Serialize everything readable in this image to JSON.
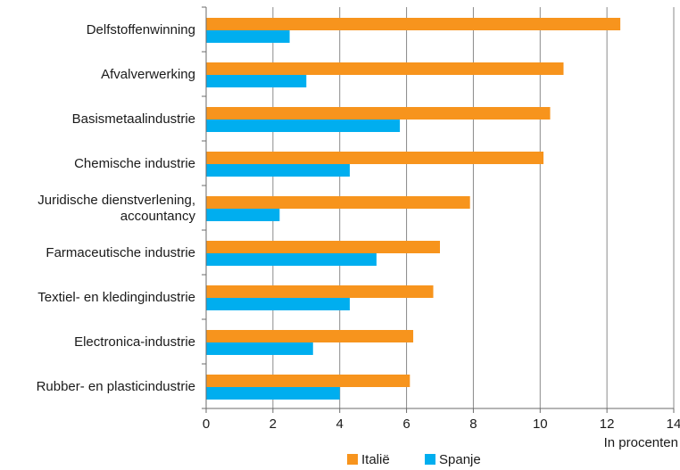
{
  "chart_data": {
    "type": "bar",
    "orientation": "horizontal",
    "categories": [
      [
        "Delfstoffenwinning"
      ],
      [
        "Afvalverwerking"
      ],
      [
        "Basismetaalindustrie"
      ],
      [
        "Chemische industrie"
      ],
      [
        "Juridische dienstverlening,",
        "accountancy"
      ],
      [
        "Farmaceutische industrie"
      ],
      [
        "Textiel- en kledingindustrie"
      ],
      [
        "Electronica-industrie"
      ],
      [
        "Rubber- en plasticindustrie"
      ]
    ],
    "series": [
      {
        "name": "Italië",
        "color": "#f7941d",
        "values": [
          12.4,
          10.7,
          10.3,
          10.1,
          7.9,
          7.0,
          6.8,
          6.2,
          6.1
        ]
      },
      {
        "name": "Spanje",
        "color": "#00aeef",
        "values": [
          2.5,
          3.0,
          5.8,
          4.3,
          2.2,
          5.1,
          4.3,
          3.2,
          4.0
        ]
      }
    ],
    "xlabel": "In procenten",
    "xlim": [
      0,
      14
    ],
    "xticks": [
      0,
      2,
      4,
      6,
      8,
      10,
      12,
      14
    ],
    "grid": true,
    "legend": "bottom-center"
  }
}
